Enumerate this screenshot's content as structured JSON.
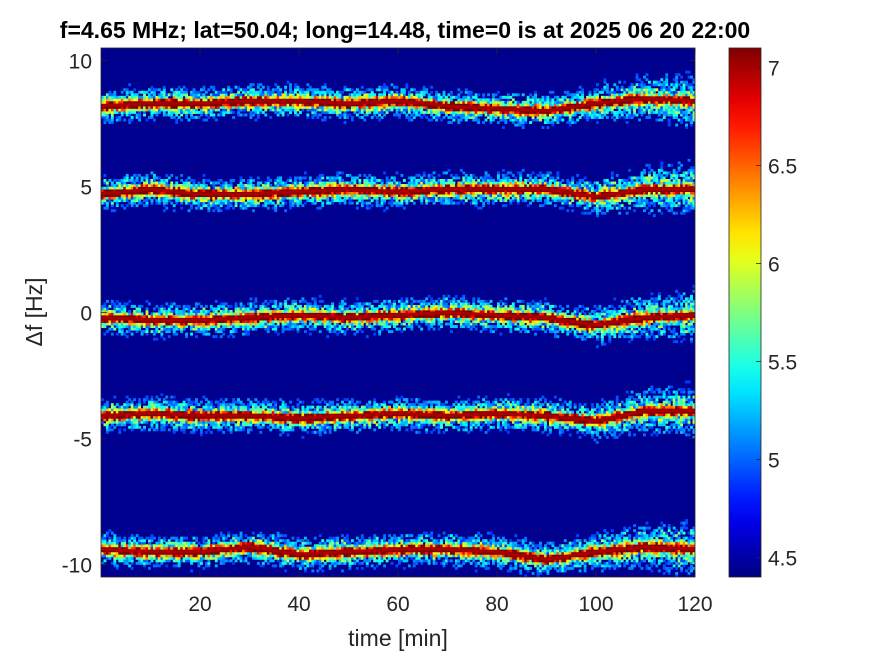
{
  "chart_data": {
    "type": "heatmap",
    "title": "f=4.65 MHz;  lat=50.04; long=14.48, time=0 is at 2025 06 20 22:00",
    "xlabel": "time [min]",
    "ylabel": "Δf [Hz]",
    "xlim": [
      0,
      120
    ],
    "ylim": [
      -10.5,
      10.5
    ],
    "xticks": [
      20,
      40,
      60,
      80,
      100,
      120
    ],
    "xtick_labels": [
      "20",
      "40",
      "60",
      "80",
      "100",
      "120"
    ],
    "yticks": [
      -10,
      -5,
      0,
      5,
      10
    ],
    "ytick_labels": [
      "-10",
      "-5",
      "0",
      "5",
      "10"
    ],
    "colormap": "jet",
    "clim": [
      4.4,
      7.1
    ],
    "colorbar_ticks": [
      4.5,
      5,
      5.5,
      6,
      6.5,
      7
    ],
    "colorbar_tick_labels": [
      "4.5",
      "5",
      "5.5",
      "6",
      "6.5",
      "7"
    ],
    "grid": false,
    "background_color": "#00008f",
    "bands": [
      {
        "center_hz": 8.3,
        "trace_time_min": [
          0,
          10,
          20,
          30,
          40,
          50,
          60,
          70,
          80,
          90,
          100,
          110,
          120
        ],
        "trace_freq_hz": [
          8.2,
          8.3,
          8.3,
          8.4,
          8.4,
          8.3,
          8.4,
          8.2,
          8.1,
          8.0,
          8.3,
          8.5,
          8.4
        ]
      },
      {
        "center_hz": 4.8,
        "trace_time_min": [
          0,
          10,
          20,
          30,
          40,
          50,
          60,
          70,
          80,
          90,
          100,
          110,
          120
        ],
        "trace_freq_hz": [
          4.7,
          4.9,
          4.7,
          4.7,
          4.8,
          4.9,
          4.8,
          4.9,
          4.9,
          4.9,
          4.6,
          4.9,
          4.9
        ]
      },
      {
        "center_hz": -0.2,
        "trace_time_min": [
          0,
          10,
          20,
          30,
          40,
          50,
          60,
          70,
          80,
          90,
          100,
          110,
          120
        ],
        "trace_freq_hz": [
          -0.2,
          -0.3,
          -0.3,
          -0.2,
          -0.1,
          -0.2,
          -0.1,
          0.0,
          -0.1,
          -0.2,
          -0.5,
          -0.2,
          -0.1
        ]
      },
      {
        "center_hz": -4.1,
        "trace_time_min": [
          0,
          10,
          20,
          30,
          40,
          50,
          60,
          70,
          80,
          90,
          100,
          110,
          120
        ],
        "trace_freq_hz": [
          -4.1,
          -4.0,
          -4.1,
          -4.1,
          -4.2,
          -4.1,
          -4.0,
          -4.1,
          -4.0,
          -4.1,
          -4.3,
          -3.9,
          -3.9
        ]
      },
      {
        "center_hz": -9.5,
        "trace_time_min": [
          0,
          10,
          20,
          30,
          40,
          50,
          60,
          70,
          80,
          90,
          100,
          110,
          120
        ],
        "trace_freq_hz": [
          -9.4,
          -9.5,
          -9.5,
          -9.3,
          -9.6,
          -9.5,
          -9.4,
          -9.4,
          -9.5,
          -9.8,
          -9.5,
          -9.3,
          -9.4
        ]
      }
    ]
  }
}
